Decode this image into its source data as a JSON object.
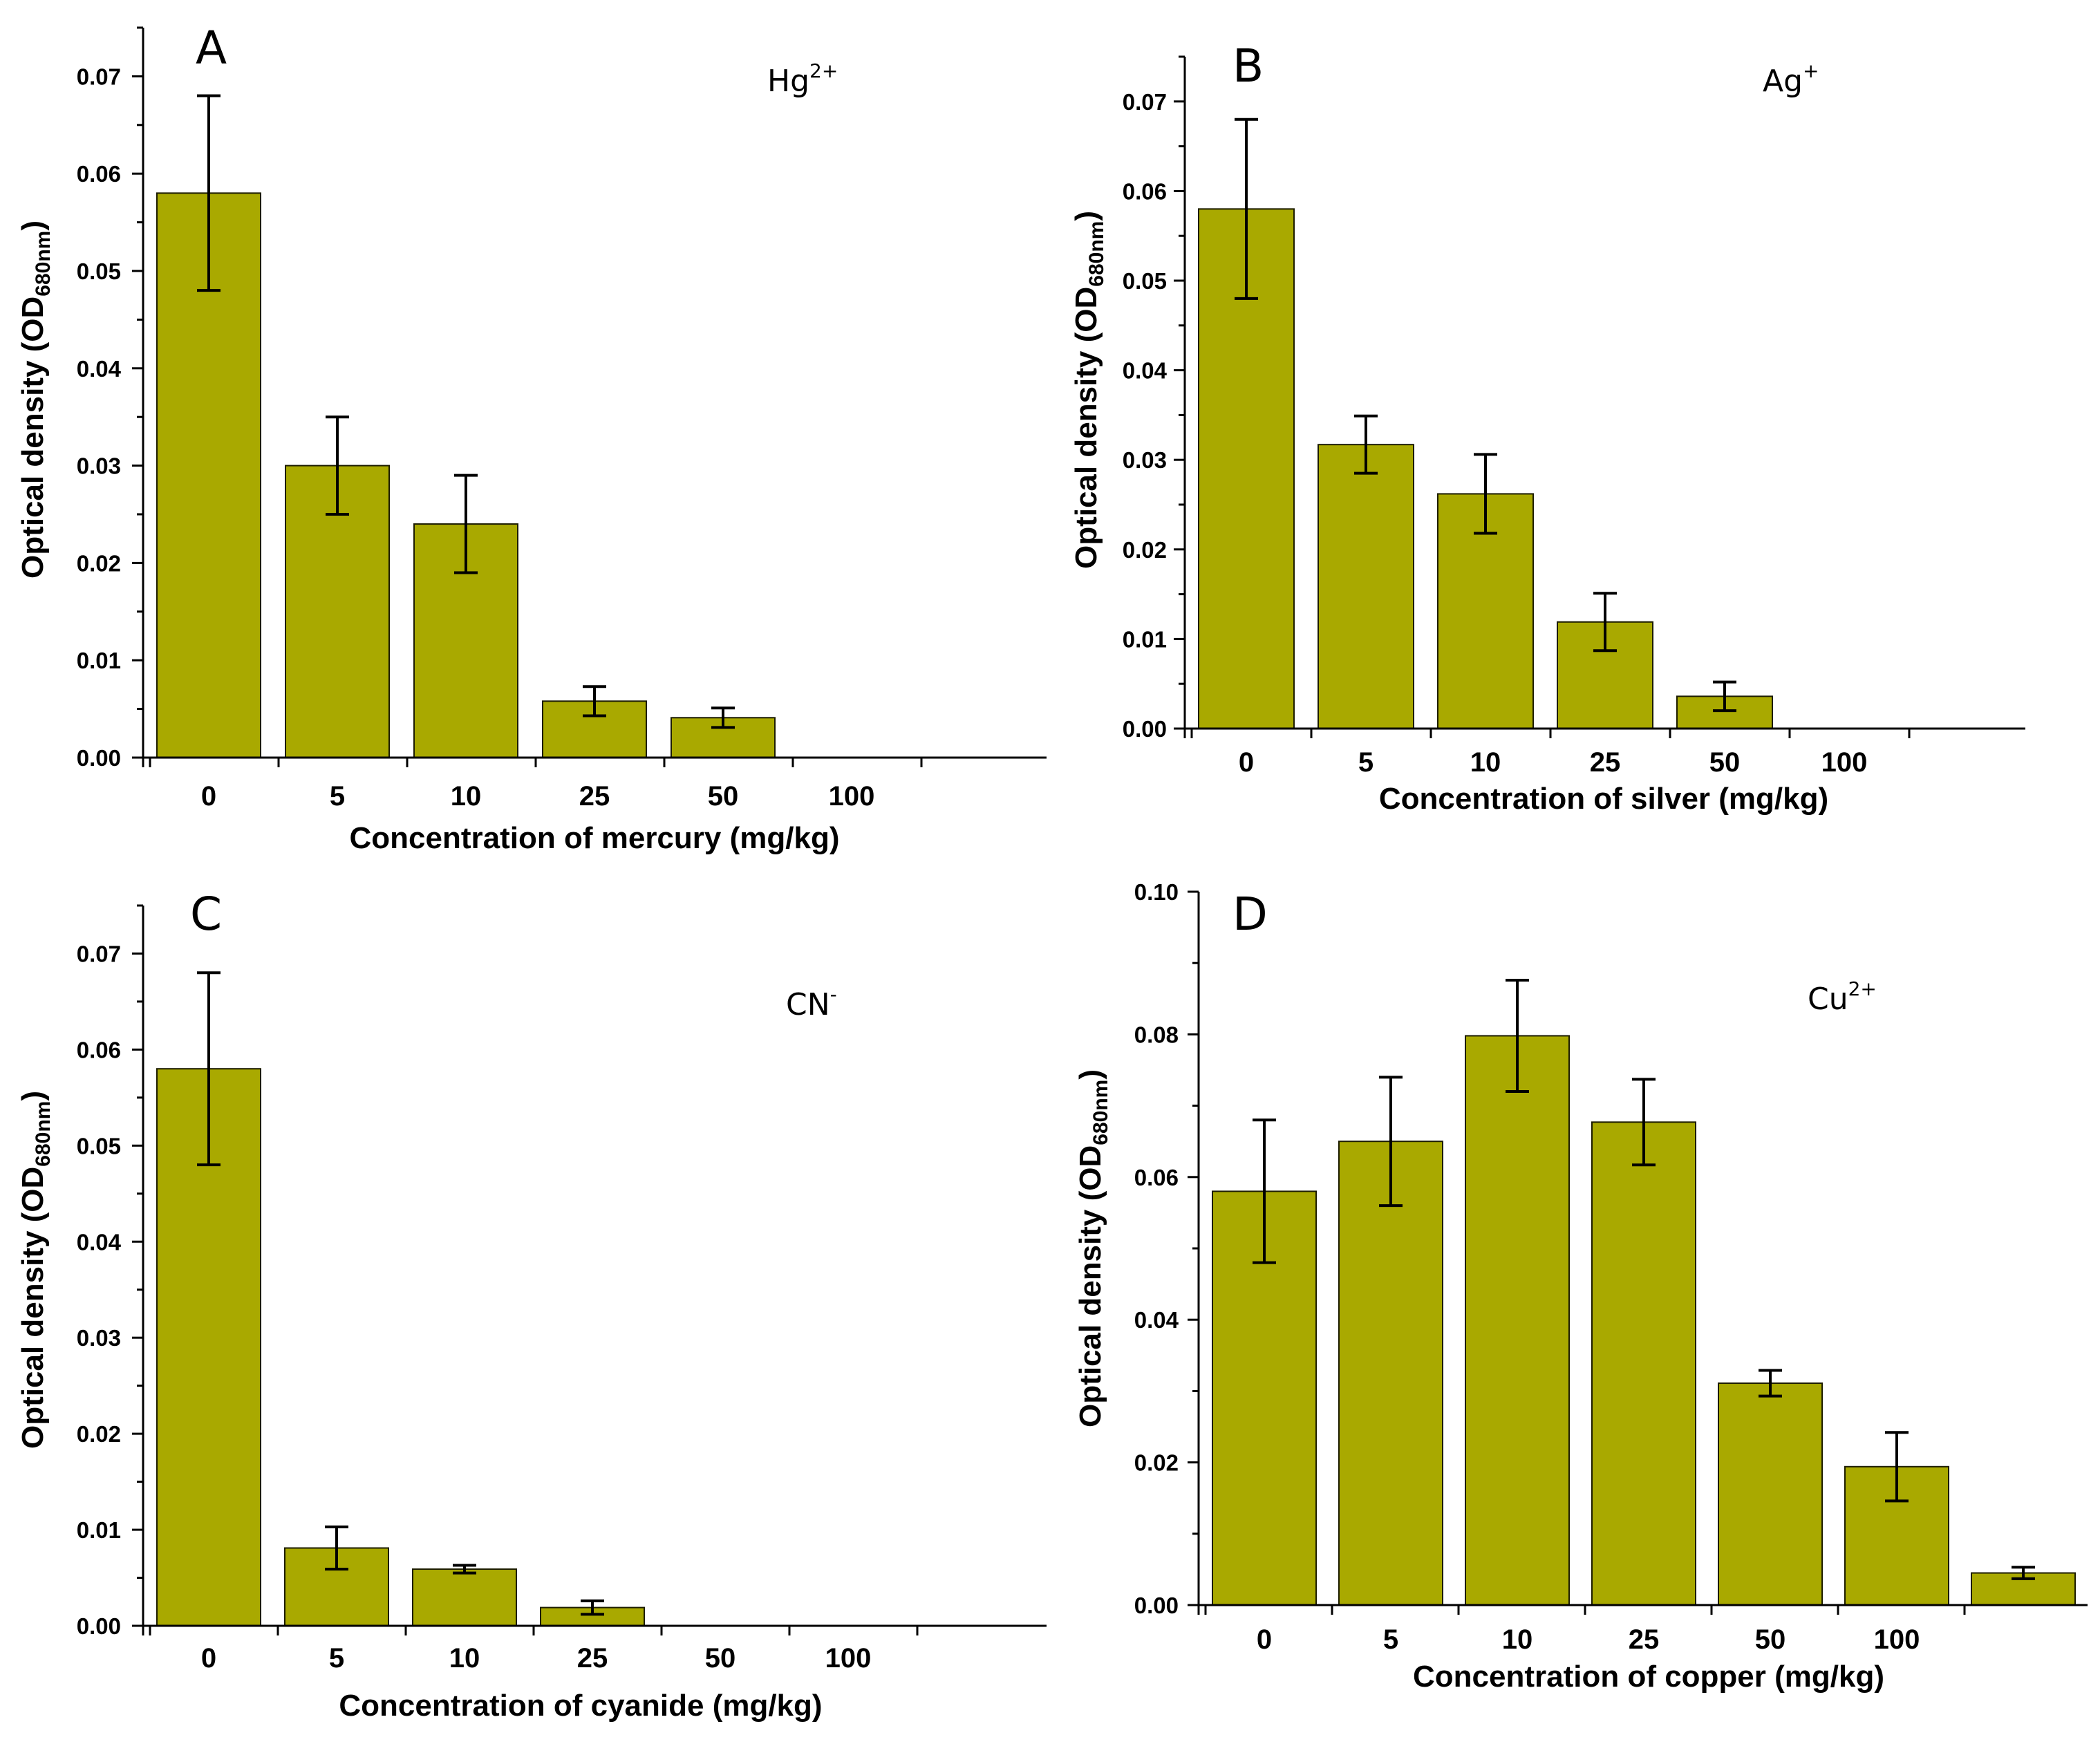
{
  "colors": {
    "bar": "#a9a900",
    "bar_stroke": "#1c1c00",
    "axis": "#000000"
  },
  "chart_data": [
    {
      "type": "bar",
      "panel": "A",
      "ion": "Hg",
      "ion_sup": "2+",
      "categories": [
        "0",
        "5",
        "10",
        "25",
        "50",
        "100"
      ],
      "values": [
        0.058,
        0.03,
        0.024,
        0.0058,
        0.0041,
        0
      ],
      "errors": [
        0.01,
        0.005,
        0.005,
        0.0015,
        0.001,
        0
      ],
      "ylim": [
        0,
        0.075
      ],
      "yticks": [
        0.0,
        0.01,
        0.02,
        0.03,
        0.04,
        0.05,
        0.06,
        0.07
      ],
      "ytick_labels": [
        "0.00",
        "0.01",
        "0.02",
        "0.03",
        "0.04",
        "0.05",
        "0.06",
        "0.07"
      ],
      "xlabel": "Concentration of mercury (mg/kg)",
      "ylabel": "Optical density (OD",
      "ylabel_sub": "680nm",
      "ylabel_end": ")"
    },
    {
      "type": "bar",
      "panel": "B",
      "ion": "Ag",
      "ion_sup": "+",
      "categories": [
        "0",
        "5",
        "10",
        "25",
        "50",
        "100"
      ],
      "values": [
        0.058,
        0.0317,
        0.0262,
        0.0119,
        0.0036,
        0
      ],
      "errors": [
        0.01,
        0.0032,
        0.0044,
        0.0032,
        0.0016,
        0
      ],
      "ylim": [
        0,
        0.075
      ],
      "yticks": [
        0.0,
        0.01,
        0.02,
        0.03,
        0.04,
        0.05,
        0.06,
        0.07
      ],
      "ytick_labels": [
        "0.00",
        "0.01",
        "0.02",
        "0.03",
        "0.04",
        "0.05",
        "0.06",
        "0.07"
      ],
      "xlabel": "Concentration of silver (mg/kg)",
      "ylabel": "Optical density (OD",
      "ylabel_sub": "680nm",
      "ylabel_end": ")"
    },
    {
      "type": "bar",
      "panel": "C",
      "ion": "CN",
      "ion_sup": "-",
      "categories": [
        "0",
        "5",
        "10",
        "25",
        "50",
        "100"
      ],
      "values": [
        0.058,
        0.0081,
        0.0059,
        0.0019,
        0,
        0
      ],
      "errors": [
        0.01,
        0.0022,
        0.0004,
        0.0007,
        0,
        0
      ],
      "ylim": [
        0,
        0.075
      ],
      "yticks": [
        0.0,
        0.01,
        0.02,
        0.03,
        0.04,
        0.05,
        0.06,
        0.07
      ],
      "ytick_labels": [
        "0.00",
        "0.01",
        "0.02",
        "0.03",
        "0.04",
        "0.05",
        "0.06",
        "0.07"
      ],
      "xlabel": "Concentration of cyanide (mg/kg)",
      "ylabel": "Optical density (OD",
      "ylabel_sub": "680nm",
      "ylabel_end": ")"
    },
    {
      "type": "bar",
      "panel": "D",
      "ion": "Cu",
      "ion_sup": "2+",
      "categories": [
        "0",
        "5",
        "10",
        "25",
        "50",
        "100",
        ""
      ],
      "values": [
        0.058,
        0.065,
        0.0798,
        0.0677,
        0.0311,
        0.0194,
        0.0045
      ],
      "errors": [
        0.01,
        0.009,
        0.0078,
        0.006,
        0.0018,
        0.0048,
        0.0008
      ],
      "ylim": [
        0,
        0.1
      ],
      "yticks": [
        0.0,
        0.02,
        0.04,
        0.06,
        0.08,
        0.1
      ],
      "ytick_labels": [
        "0.00",
        "0.02",
        "0.04",
        "0.06",
        "0.08",
        "0.10"
      ],
      "xlabel": "Concentration of copper (mg/kg)",
      "ylabel": "Optical density (OD",
      "ylabel_sub": "680nm",
      "ylabel_end": ")"
    }
  ]
}
